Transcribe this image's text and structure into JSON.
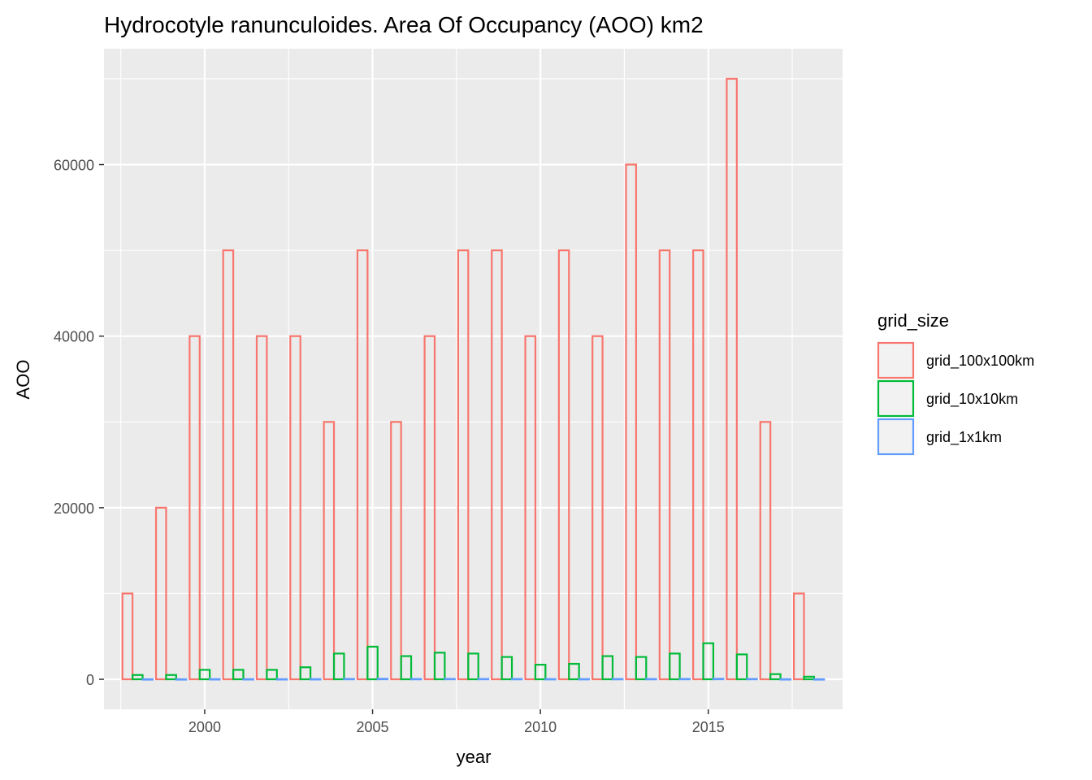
{
  "chart_data": {
    "type": "bar",
    "title": "Hydrocotyle ranunculoides. Area Of Occupancy (AOO) km2",
    "xlabel": "year",
    "ylabel": "AOO",
    "x": [
      1998,
      1999,
      2000,
      2001,
      2002,
      2003,
      2004,
      2005,
      2006,
      2007,
      2008,
      2009,
      2010,
      2011,
      2012,
      2013,
      2014,
      2015,
      2016,
      2017,
      2018
    ],
    "x_ticks": [
      "2000",
      "2005",
      "2010",
      "2015"
    ],
    "x_tick_values": [
      2000,
      2005,
      2010,
      2015
    ],
    "y_ticks": [
      "0",
      "20000",
      "40000",
      "60000"
    ],
    "y_tick_values": [
      0,
      20000,
      40000,
      60000
    ],
    "xlim": [
      1997,
      2019
    ],
    "ylim": [
      -3500,
      73500
    ],
    "grid": true,
    "legend": {
      "title": "grid_size",
      "position": "right"
    },
    "series": [
      {
        "name": "grid_100x100km",
        "color": "#F8766D",
        "values": [
          10000,
          20000,
          40000,
          50000,
          40000,
          40000,
          30000,
          50000,
          30000,
          40000,
          50000,
          50000,
          40000,
          50000,
          40000,
          60000,
          50000,
          50000,
          70000,
          30000,
          10000
        ]
      },
      {
        "name": "grid_10x10km",
        "color": "#00BA38",
        "values": [
          500,
          500,
          1100,
          1100,
          1100,
          1400,
          3000,
          3800,
          2700,
          3100,
          3000,
          2600,
          1700,
          1800,
          2700,
          2600,
          3000,
          4200,
          2900,
          600,
          300
        ]
      },
      {
        "name": "grid_1x1km",
        "color": "#619CFF",
        "values": [
          5,
          5,
          15,
          15,
          15,
          20,
          40,
          60,
          35,
          45,
          40,
          35,
          25,
          25,
          35,
          35,
          40,
          60,
          40,
          10,
          5
        ]
      }
    ]
  }
}
